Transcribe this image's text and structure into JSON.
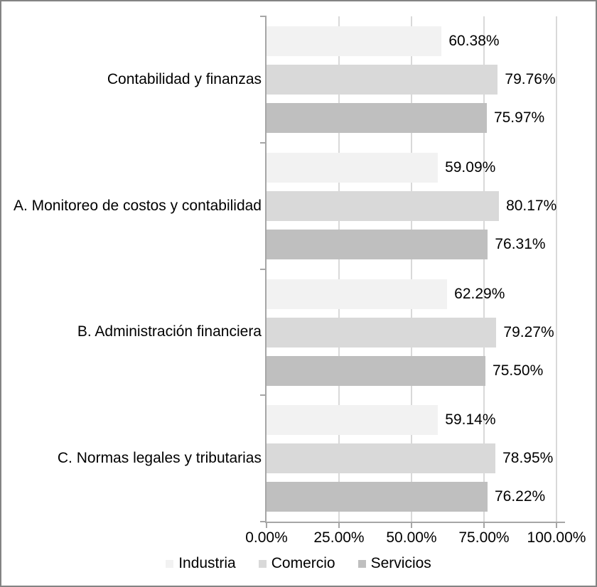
{
  "chart_data": {
    "type": "bar",
    "orientation": "horizontal",
    "title": "",
    "xlabel": "",
    "ylabel": "",
    "categories": [
      "Contabilidad y finanzas",
      "A. Monitoreo de costos y contabilidad",
      "B. Administración financiera",
      "C. Normas legales y tributarias"
    ],
    "series": [
      {
        "name": "Industria",
        "color": "#F2F2F2",
        "values": [
          60.38,
          59.09,
          62.29,
          59.14
        ],
        "labels": [
          "60.38%",
          "59.09%",
          "62.29%",
          "59.14%"
        ]
      },
      {
        "name": "Comercio",
        "color": "#D9D9D9",
        "values": [
          79.76,
          80.17,
          79.27,
          78.95
        ],
        "labels": [
          "79.76%",
          "80.17%",
          "79.27%",
          "78.95%"
        ]
      },
      {
        "name": "Servicios",
        "color": "#BFBFBF",
        "values": [
          75.97,
          76.31,
          75.5,
          76.22
        ],
        "labels": [
          "75.97%",
          "76.31%",
          "75.50%",
          "76.22%"
        ]
      }
    ],
    "x_axis": {
      "min": 0,
      "max": 100,
      "ticks": [
        "0.00%",
        "25.00%",
        "50.00%",
        "75.00%",
        "100.00%"
      ]
    },
    "grid": true,
    "legend": {
      "position": "bottom"
    },
    "colors": {
      "gridline": "#D9D9D9",
      "axis": "#A6A6A6",
      "text": "#000000",
      "frame_border": "#848484",
      "background": "#FFFFFF"
    }
  }
}
